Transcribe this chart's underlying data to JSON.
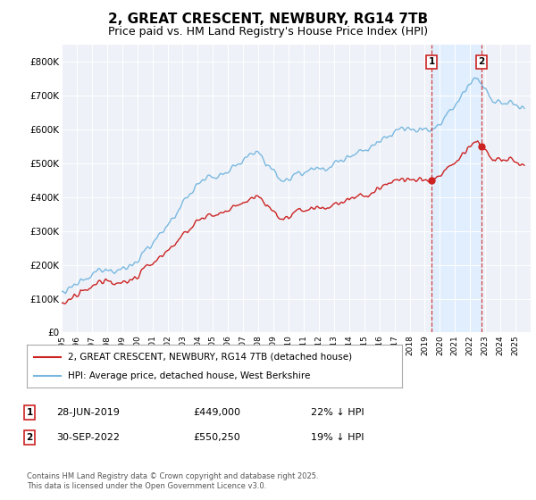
{
  "title": "2, GREAT CRESCENT, NEWBURY, RG14 7TB",
  "subtitle": "Price paid vs. HM Land Registry's House Price Index (HPI)",
  "title_fontsize": 11,
  "subtitle_fontsize": 9,
  "ylim": [
    0,
    850000
  ],
  "yticks": [
    0,
    100000,
    200000,
    300000,
    400000,
    500000,
    600000,
    700000,
    800000
  ],
  "ytick_labels": [
    "£0",
    "£100K",
    "£200K",
    "£300K",
    "£400K",
    "£500K",
    "£600K",
    "£700K",
    "£800K"
  ],
  "hpi_color": "#7ab8e0",
  "price_color": "#cc2222",
  "dashed_color": "#cc2222",
  "shade_color": "#ddeeff",
  "background_color": "#eef2f8",
  "sale1_t": 2019.4589,
  "sale1_price": 449000,
  "sale2_t": 2022.7479,
  "sale2_price": 550250,
  "legend_label_price": "2, GREAT CRESCENT, NEWBURY, RG14 7TB (detached house)",
  "legend_label_hpi": "HPI: Average price, detached house, West Berkshire",
  "note1_date": "28-JUN-2019",
  "note1_price": "£449,000",
  "note1_pct": "22% ↓ HPI",
  "note2_date": "30-SEP-2022",
  "note2_price": "£550,250",
  "note2_pct": "19% ↓ HPI",
  "footer": "Contains HM Land Registry data © Crown copyright and database right 2025.\nThis data is licensed under the Open Government Licence v3.0.",
  "xmin": 1995,
  "xmax": 2026
}
